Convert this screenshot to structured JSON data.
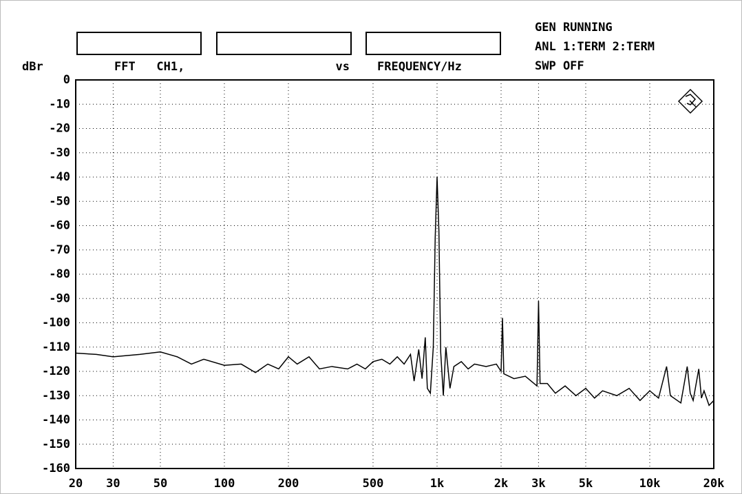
{
  "chart_data": {
    "type": "line",
    "y_label": "dBr",
    "header_boxes": [
      "FFT   CH1,",
      "vs",
      "FREQUENCY/Hz"
    ],
    "status": [
      "GEN RUNNING",
      "ANL 1:TERM 2:TERM",
      "SWP OFF"
    ],
    "log_x": true,
    "grid": true,
    "xlim": [
      20,
      20000
    ],
    "xticks": [
      20,
      30,
      50,
      100,
      200,
      500,
      {
        "value": 1000,
        "label": "1k"
      },
      {
        "value": 2000,
        "label": "2k"
      },
      {
        "value": 3000,
        "label": "3k"
      },
      {
        "value": 5000,
        "label": "5k"
      },
      {
        "value": 10000,
        "label": "10k"
      },
      {
        "value": 20000,
        "label": "20k"
      }
    ],
    "ylim": [
      -160,
      0
    ],
    "yticks": [
      0,
      -10,
      -20,
      -30,
      -40,
      -50,
      -60,
      -70,
      -80,
      -90,
      -100,
      -110,
      -120,
      -130,
      -140,
      -150,
      -160
    ],
    "x": [
      20,
      25,
      30,
      40,
      50,
      60,
      70,
      80,
      100,
      120,
      140,
      160,
      180,
      200,
      220,
      250,
      280,
      320,
      380,
      420,
      460,
      500,
      550,
      600,
      650,
      700,
      750,
      780,
      820,
      850,
      880,
      900,
      930,
      960,
      980,
      1000,
      1020,
      1040,
      1070,
      1100,
      1150,
      1200,
      1300,
      1400,
      1500,
      1700,
      1900,
      2000,
      2030,
      2060,
      2300,
      2600,
      2950,
      3000,
      3050,
      3300,
      3600,
      4000,
      4500,
      5000,
      5500,
      6000,
      7000,
      8000,
      9000,
      10000,
      11000,
      12000,
      12500,
      14000,
      15000,
      15500,
      16000,
      17000,
      17500,
      18000,
      19000,
      20000
    ],
    "series": [
      {
        "name": "CH1",
        "color": "#000000",
        "values": [
          -112.5,
          -113,
          -114,
          -113,
          -112,
          -114,
          -117,
          -115,
          -117.5,
          -117,
          -120.5,
          -117,
          -119,
          -114,
          -117,
          -114,
          -119,
          -118,
          -119,
          -117,
          -119,
          -116,
          -115,
          -117,
          -114,
          -117,
          -113,
          -124,
          -111,
          -123,
          -106,
          -127,
          -129,
          -110,
          -65,
          -40,
          -62,
          -112,
          -130,
          -110,
          -127,
          -118,
          -116,
          -119,
          -117,
          -118,
          -117,
          -120,
          -98,
          -121,
          -123,
          -122,
          -126,
          -91,
          -125,
          -125,
          -129,
          -126,
          -130,
          -127,
          -131,
          -128,
          -130,
          -127,
          -132,
          -128,
          -131,
          -118,
          -130,
          -133,
          -118,
          -129,
          -132,
          -119,
          -131,
          -128,
          -134,
          -132
        ]
      }
    ]
  }
}
